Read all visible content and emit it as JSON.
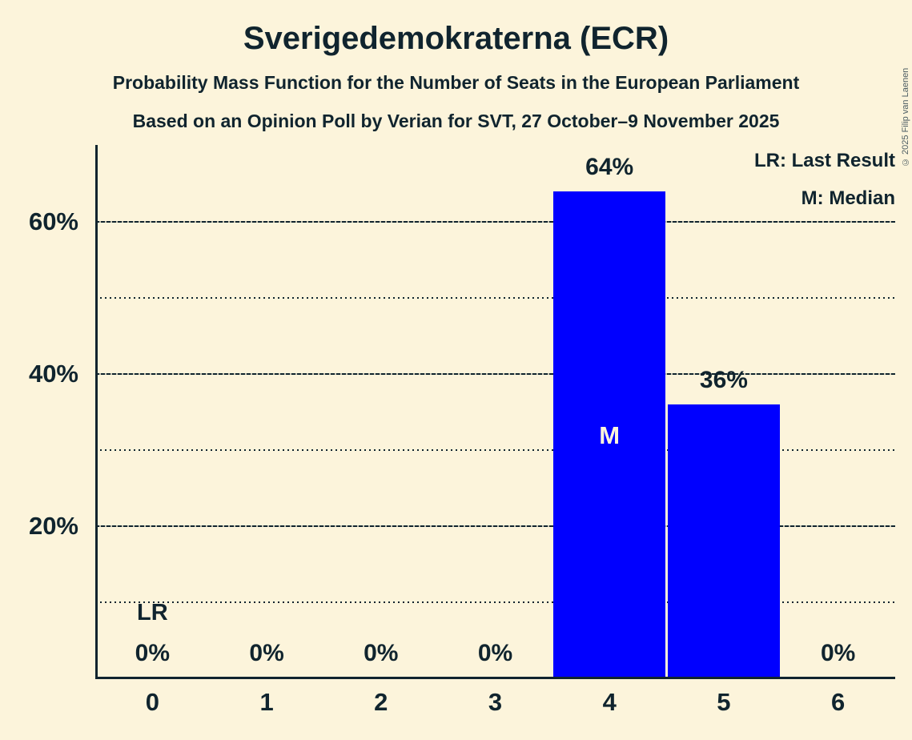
{
  "window": {
    "background_color": "#FCF4DB",
    "ink_color": "#10242E"
  },
  "header": {
    "title": "Sverigedemokraterna (ECR)",
    "subtitle_line1": "Probability Mass Function for the Number of Seats in the European Parliament",
    "subtitle_line2": "Based on an Opinion Poll by Verian for SVT, 27 October–9 November 2025"
  },
  "legend": {
    "last_result": "LR: Last Result",
    "median": "M: Median"
  },
  "copyright_notice": "© 2025 Filip van Laenen",
  "chart_data": {
    "type": "bar",
    "title": "Sverigedemokraterna (ECR)",
    "categories": [
      "0",
      "1",
      "2",
      "3",
      "4",
      "5",
      "6"
    ],
    "values": [
      0,
      0,
      0,
      0,
      64,
      36,
      0
    ],
    "value_labels": [
      "0%",
      "0%",
      "0%",
      "0%",
      "64%",
      "36%",
      "0%"
    ],
    "ylim": [
      0,
      70
    ],
    "ytick_labels": [
      {
        "pct": 20,
        "label": "20%"
      },
      {
        "pct": 40,
        "label": "40%"
      },
      {
        "pct": 60,
        "label": "60%"
      }
    ],
    "major_gridlines_pct": [
      20,
      40,
      60
    ],
    "minor_gridlines_pct": [
      10,
      30,
      50
    ],
    "grid": "horizontal",
    "legend_position": "top-right",
    "bar_color": "#0000FF",
    "bar_label_color": "#FCF4DB",
    "median_index": 4,
    "median_marker": "M",
    "last_result_index": 0,
    "last_result_marker": "LR"
  }
}
